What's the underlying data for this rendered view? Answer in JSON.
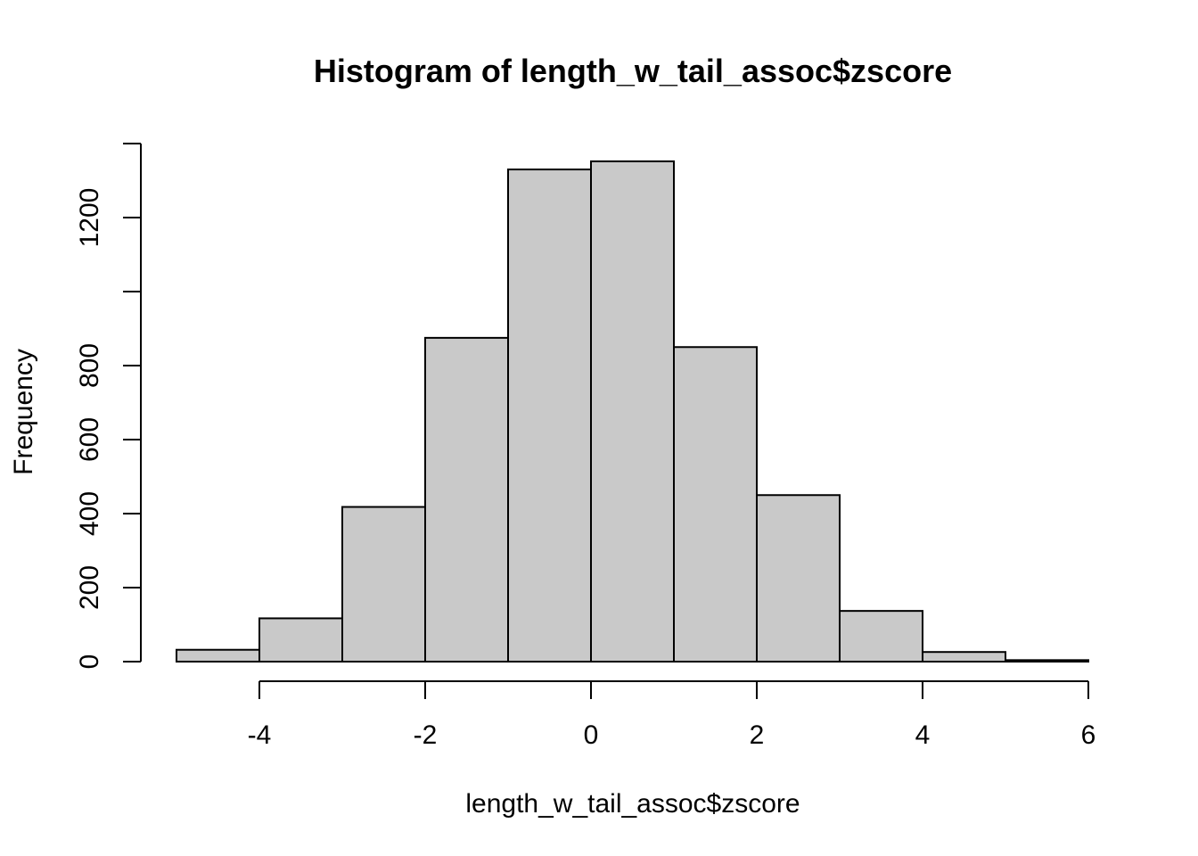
{
  "chart_data": {
    "type": "bar",
    "title": "Histogram of length_w_tail_assoc$zscore",
    "xlabel": "length_w_tail_assoc$zscore",
    "ylabel": "Frequency",
    "bins": [
      {
        "x0": -5,
        "x1": -4,
        "count": 32
      },
      {
        "x0": -4,
        "x1": -3,
        "count": 117
      },
      {
        "x0": -3,
        "x1": -2,
        "count": 418
      },
      {
        "x0": -2,
        "x1": -1,
        "count": 875
      },
      {
        "x0": -1,
        "x1": 0,
        "count": 1330
      },
      {
        "x0": 0,
        "x1": 1,
        "count": 1352
      },
      {
        "x0": 1,
        "x1": 2,
        "count": 850
      },
      {
        "x0": 2,
        "x1": 3,
        "count": 450
      },
      {
        "x0": 3,
        "x1": 4,
        "count": 137
      },
      {
        "x0": 4,
        "x1": 5,
        "count": 26
      },
      {
        "x0": 5,
        "x1": 6,
        "count": 4
      }
    ],
    "xlim": [
      -5,
      6
    ],
    "ylim": [
      0,
      1400
    ],
    "x_ticks": [
      -4,
      -2,
      0,
      2,
      4,
      6
    ],
    "x_tick_labels": [
      "-4",
      "-2",
      "0",
      "2",
      "4",
      "6"
    ],
    "y_ticks": [
      0,
      200,
      400,
      600,
      800,
      1000,
      1200,
      1400
    ],
    "y_tick_labels": [
      "0",
      "200",
      "400",
      "600",
      "800",
      "",
      "1200",
      ""
    ],
    "grid": false,
    "colors": {
      "bar_fill": "#c9c9c9",
      "bar_stroke": "#000000"
    }
  }
}
